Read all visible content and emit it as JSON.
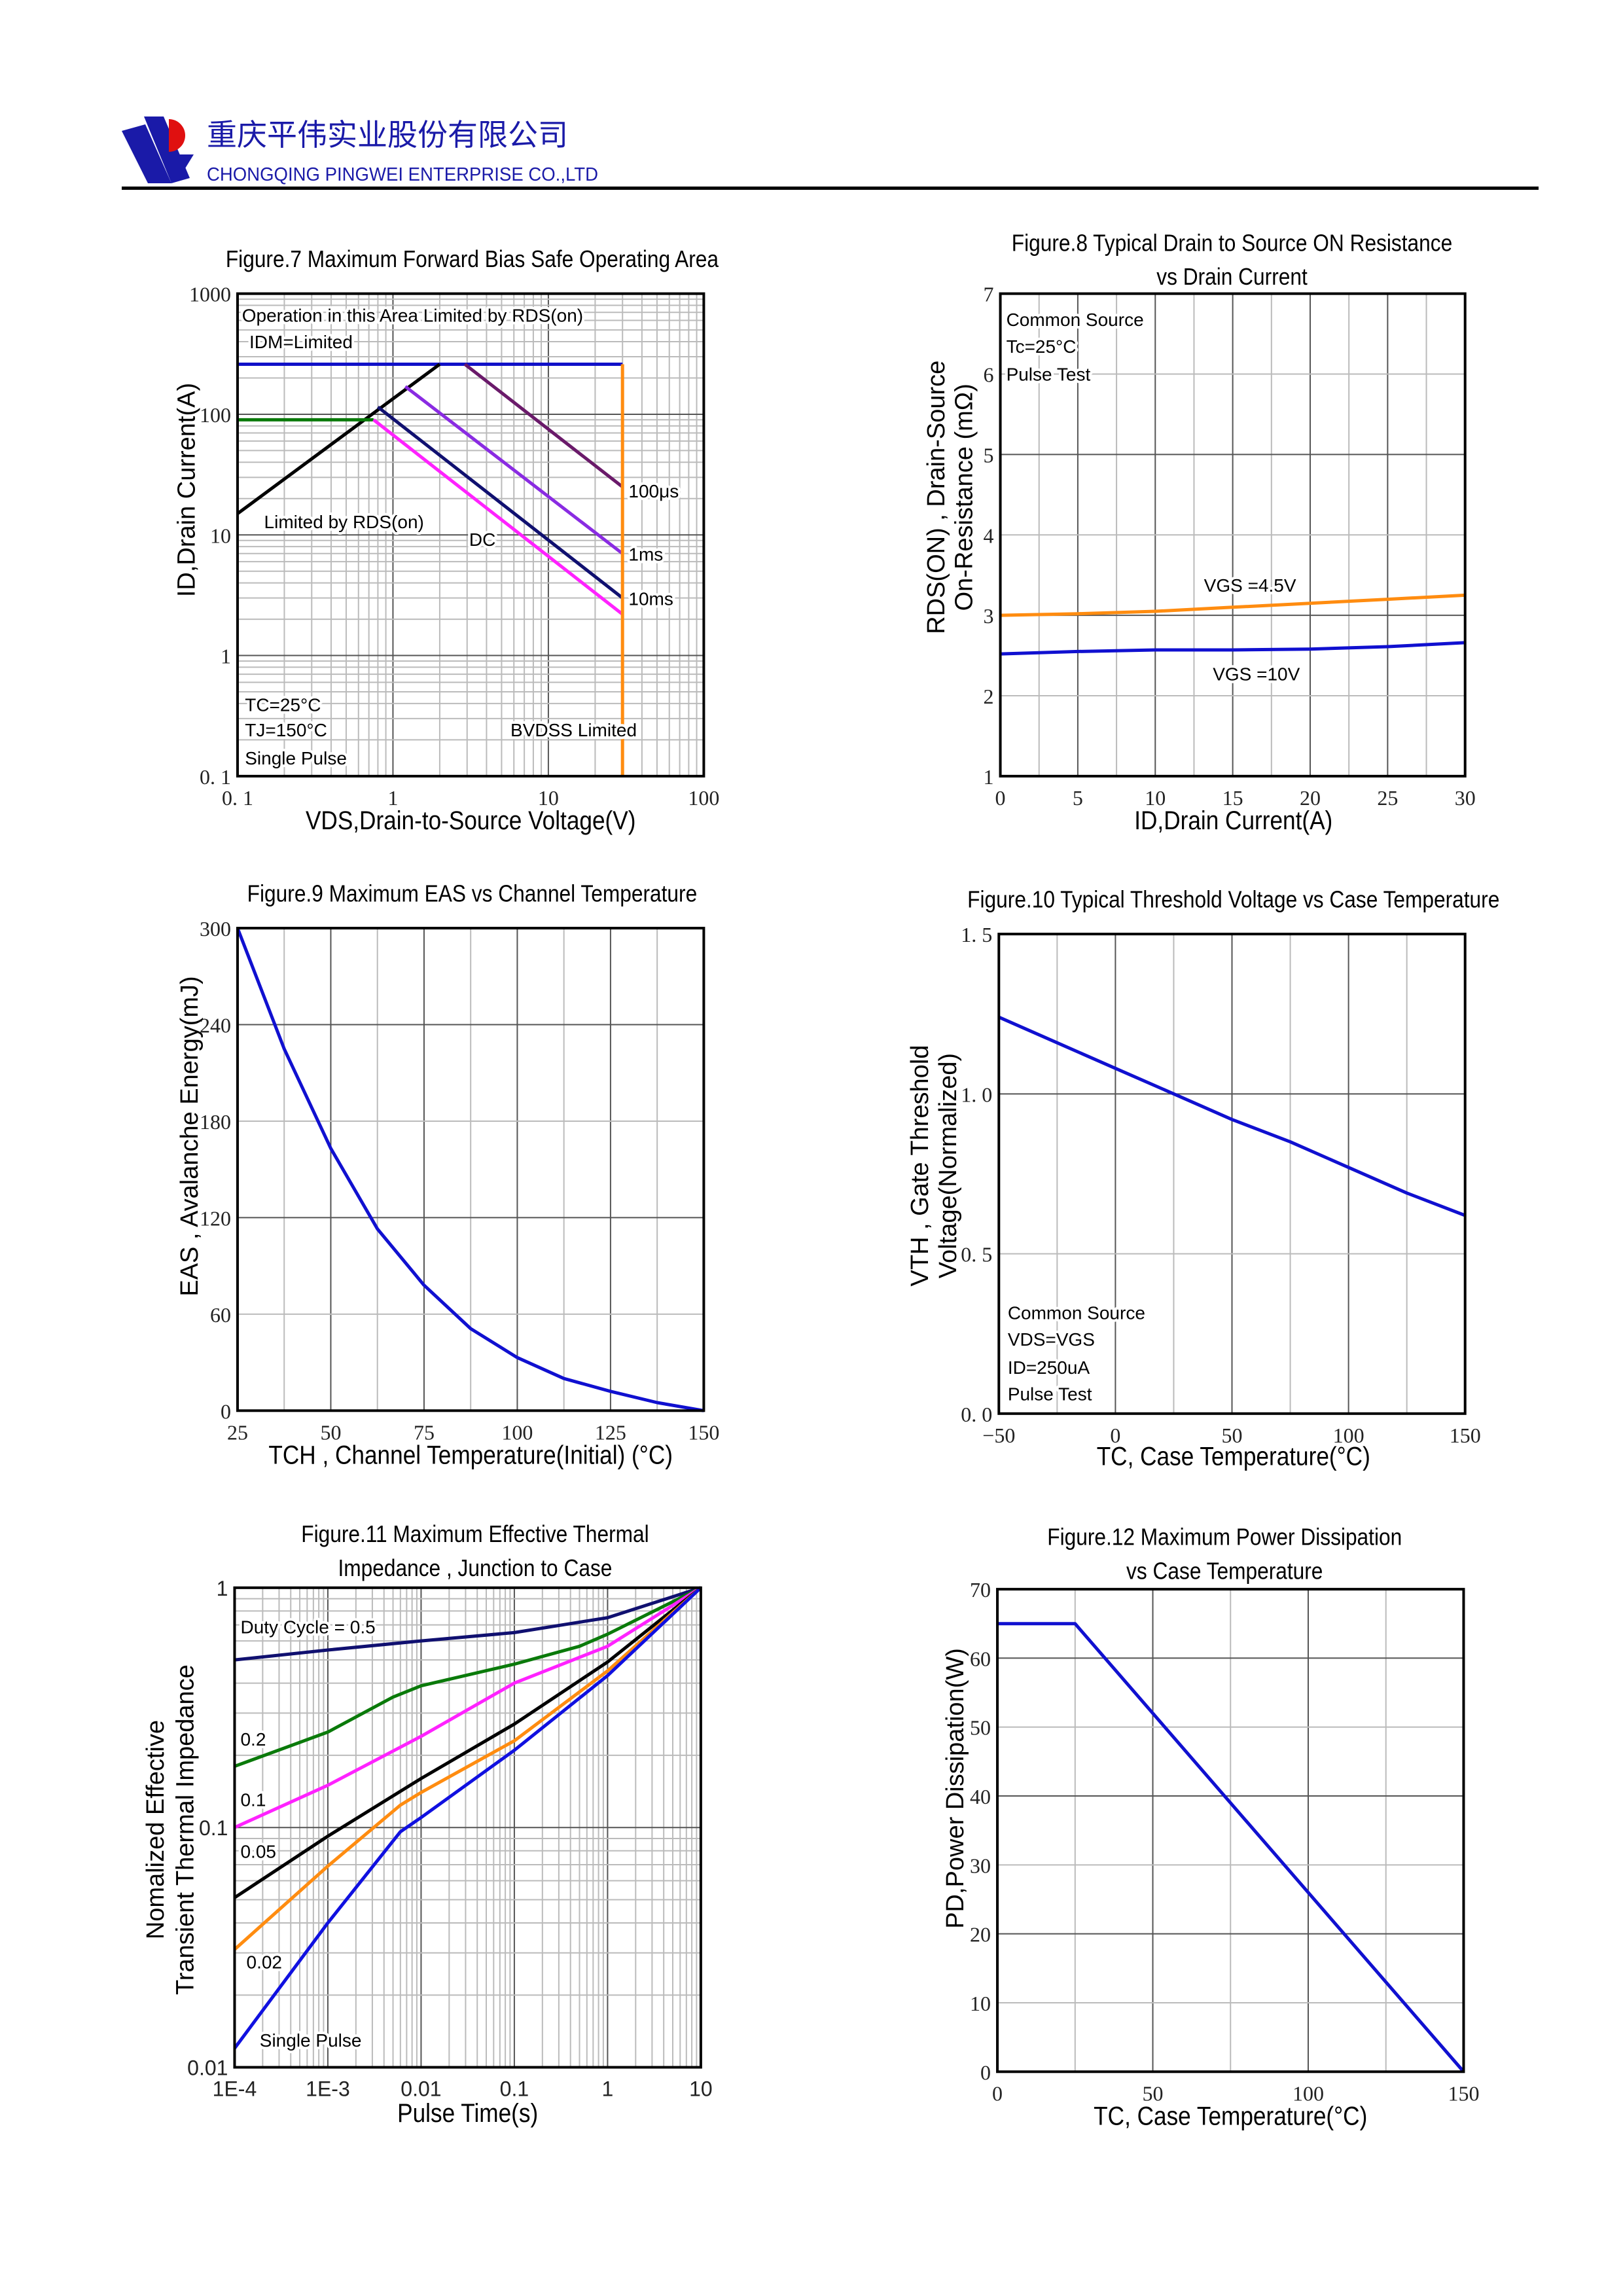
{
  "header": {
    "company_cn": "重庆平伟实业股份有限公司",
    "company_en": "CHONGQING PINGWEI ENTERPRISE CO.,LTD",
    "brand_color": "#1a1aa8",
    "logo_accent": "#e01010"
  },
  "chart_data": [
    {
      "type": "line",
      "title": [
        "Figure.7 Maximum Forward Bias Safe Operating Area"
      ],
      "xlabel": "VDS,Drain-to-Source Voltage(V)",
      "ylabel": [
        "ID,Drain Current(A)"
      ],
      "xscale": "log",
      "yscale": "log",
      "xlim": [
        0.1,
        100
      ],
      "ylim": [
        0.1,
        1000
      ],
      "grid": true,
      "xticks": [
        {
          "v": 0.1,
          "label": "0. 1"
        },
        {
          "v": 1,
          "label": "1"
        },
        {
          "v": 10,
          "label": "10"
        },
        {
          "v": 100,
          "label": "100"
        }
      ],
      "yticks": [
        {
          "v": 0.1,
          "label": "0. 1"
        },
        {
          "v": 1,
          "label": "1"
        },
        {
          "v": 10,
          "label": "10"
        },
        {
          "v": 100,
          "label": "100"
        },
        {
          "v": 1000,
          "label": "1000"
        }
      ],
      "series": [
        {
          "color": "#1010c8",
          "points": [
            [
              0.1,
              260
            ],
            [
              30,
              260
            ]
          ]
        },
        {
          "color": "#000000",
          "points": [
            [
              0.1,
              15
            ],
            [
              2,
              260
            ]
          ]
        },
        {
          "color": "#0a7a0a",
          "points": [
            [
              0.1,
              90
            ],
            [
              0.75,
              90
            ]
          ]
        },
        {
          "color": "#6a1a6a",
          "points": [
            [
              2.9,
              260
            ],
            [
              30,
              25
            ]
          ]
        },
        {
          "color": "#8a2be2",
          "points": [
            [
              1.2,
              170
            ],
            [
              30,
              7
            ]
          ]
        },
        {
          "color": "#101070",
          "points": [
            [
              0.8,
              115
            ],
            [
              30,
              3
            ]
          ]
        },
        {
          "color": "#ff22ff",
          "points": [
            [
              0.75,
              90
            ],
            [
              30,
              2.2
            ]
          ]
        },
        {
          "color": "#ff8c10",
          "points": [
            [
              30,
              0.1
            ],
            [
              30,
              260
            ]
          ]
        }
      ],
      "annotations": [
        "Operation in this Area Limited by RDS(on)",
        "IDM=Limited",
        "Limited by RDS(on)",
        "DC",
        "100μs",
        "1ms",
        "10ms",
        "TC=25°C",
        "TJ=150°C",
        "Single Pulse",
        "BVDSS Limited"
      ]
    },
    {
      "type": "line",
      "title": [
        "Figure.8 Typical Drain to Source ON Resistance",
        "vs Drain Current"
      ],
      "xlabel": "ID,Drain Current(A)",
      "ylabel": [
        "RDS(ON) , Drain-Source",
        "On-Resistance (mΩ)"
      ],
      "xscale": "linear",
      "yscale": "linear",
      "xlim": [
        0,
        30
      ],
      "ylim": [
        1,
        7
      ],
      "grid": true,
      "xticks": [
        {
          "v": 0,
          "label": "0"
        },
        {
          "v": 5,
          "label": "5"
        },
        {
          "v": 10,
          "label": "10"
        },
        {
          "v": 15,
          "label": "15"
        },
        {
          "v": 20,
          "label": "20"
        },
        {
          "v": 25,
          "label": "25"
        },
        {
          "v": 30,
          "label": "30"
        }
      ],
      "yticks": [
        {
          "v": 1,
          "label": "1"
        },
        {
          "v": 2,
          "label": "2"
        },
        {
          "v": 3,
          "label": "3"
        },
        {
          "v": 4,
          "label": "4"
        },
        {
          "v": 5,
          "label": "5"
        },
        {
          "v": 6,
          "label": "6"
        },
        {
          "v": 7,
          "label": "7"
        }
      ],
      "series": [
        {
          "name": "VGS =4.5V",
          "color": "#ff8c10",
          "points": [
            [
              0,
              3.0
            ],
            [
              5,
              3.02
            ],
            [
              10,
              3.05
            ],
            [
              15,
              3.1
            ],
            [
              20,
              3.15
            ],
            [
              25,
              3.2
            ],
            [
              30,
              3.25
            ]
          ]
        },
        {
          "name": "VGS =10V",
          "color": "#1010d0",
          "points": [
            [
              0,
              2.52
            ],
            [
              5,
              2.55
            ],
            [
              10,
              2.57
            ],
            [
              15,
              2.57
            ],
            [
              20,
              2.58
            ],
            [
              25,
              2.61
            ],
            [
              30,
              2.66
            ]
          ]
        }
      ],
      "annotations": [
        "Common Source",
        "Tc=25°C",
        "Pulse Test",
        "VGS =4.5V",
        "VGS =10V"
      ]
    },
    {
      "type": "line",
      "title": [
        "Figure.9 Maximum EAS vs Channel Temperature"
      ],
      "xlabel": "TCH , Channel Temperature(Initial) (°C)",
      "ylabel": [
        "EAS , Avalanche Energy(mJ)"
      ],
      "xscale": "linear",
      "yscale": "linear",
      "xlim": [
        25,
        150
      ],
      "ylim": [
        0,
        300
      ],
      "grid": true,
      "xticks": [
        {
          "v": 25,
          "label": "25"
        },
        {
          "v": 50,
          "label": "50"
        },
        {
          "v": 75,
          "label": "75"
        },
        {
          "v": 100,
          "label": "100"
        },
        {
          "v": 125,
          "label": "125"
        },
        {
          "v": 150,
          "label": "150"
        }
      ],
      "yticks": [
        {
          "v": 0,
          "label": "0"
        },
        {
          "v": 60,
          "label": "60"
        },
        {
          "v": 120,
          "label": "120"
        },
        {
          "v": 180,
          "label": "180"
        },
        {
          "v": 240,
          "label": "240"
        },
        {
          "v": 300,
          "label": "300"
        }
      ],
      "series": [
        {
          "color": "#1010d0",
          "points": [
            [
              25,
              300
            ],
            [
              37.5,
              225
            ],
            [
              50,
              163
            ],
            [
              62.5,
              113
            ],
            [
              75,
              78
            ],
            [
              87.5,
              51
            ],
            [
              100,
              33
            ],
            [
              112.5,
              20
            ],
            [
              125,
              12
            ],
            [
              137.5,
              5
            ],
            [
              150,
              0
            ]
          ]
        }
      ],
      "annotations": []
    },
    {
      "type": "line",
      "title": [
        "Figure.10 Typical Threshold Voltage vs Case Temperature"
      ],
      "xlabel": "TC, Case Temperature(°C)",
      "ylabel": [
        "VTH , Gate Threshold",
        "Voltage(Normalized)"
      ],
      "xscale": "linear",
      "yscale": "linear",
      "xlim": [
        -50,
        150
      ],
      "ylim": [
        0,
        1.5
      ],
      "grid": true,
      "xticks": [
        {
          "v": -50,
          "label": "−50"
        },
        {
          "v": 0,
          "label": "0"
        },
        {
          "v": 50,
          "label": "50"
        },
        {
          "v": 100,
          "label": "100"
        },
        {
          "v": 150,
          "label": "150"
        }
      ],
      "yticks": [
        {
          "v": 0,
          "label": "0. 0"
        },
        {
          "v": 0.5,
          "label": "0. 5"
        },
        {
          "v": 1,
          "label": "1. 0"
        },
        {
          "v": 1.5,
          "label": "1. 5"
        }
      ],
      "series": [
        {
          "color": "#1010d0",
          "points": [
            [
              -50,
              1.24
            ],
            [
              -25,
              1.16
            ],
            [
              0,
              1.08
            ],
            [
              25,
              1.0
            ],
            [
              50,
              0.92
            ],
            [
              75,
              0.85
            ],
            [
              100,
              0.77
            ],
            [
              125,
              0.69
            ],
            [
              150,
              0.62
            ]
          ]
        }
      ],
      "annotations": [
        "Common Source",
        "VDS=VGS",
        "ID=250uA",
        "Pulse Test"
      ]
    },
    {
      "type": "line",
      "title": [
        "Figure.11 Maximum Effective Thermal",
        "Impedance , Junction to Case"
      ],
      "xlabel": "Pulse Time(s)",
      "ylabel": [
        "Nomalized Effective",
        "Transient Thermal Impedance"
      ],
      "xscale": "log",
      "yscale": "log",
      "xlim": [
        0.0001,
        10
      ],
      "ylim": [
        0.01,
        1
      ],
      "grid": true,
      "xticks": [
        {
          "v": 0.0001,
          "label": "1E-4"
        },
        {
          "v": 0.001,
          "label": "1E-3"
        },
        {
          "v": 0.01,
          "label": "0.01"
        },
        {
          "v": 0.1,
          "label": "0.1"
        },
        {
          "v": 1,
          "label": "1"
        },
        {
          "v": 10,
          "label": "10"
        }
      ],
      "yticks": [
        {
          "v": 0.01,
          "label": "0.01"
        },
        {
          "v": 0.1,
          "label": "0.1"
        },
        {
          "v": 1,
          "label": "1"
        }
      ],
      "series": [
        {
          "name": "Duty Cycle = 0.5",
          "color": "#101070",
          "points": [
            [
              0.0001,
              0.5
            ],
            [
              0.001,
              0.55
            ],
            [
              0.01,
              0.6
            ],
            [
              0.1,
              0.65
            ],
            [
              1,
              0.75
            ],
            [
              10,
              1
            ]
          ]
        },
        {
          "name": "0.2",
          "color": "#0a7a0a",
          "points": [
            [
              0.0001,
              0.18
            ],
            [
              0.001,
              0.25
            ],
            [
              0.005,
              0.35
            ],
            [
              0.01,
              0.39
            ],
            [
              0.1,
              0.48
            ],
            [
              0.5,
              0.57
            ],
            [
              1,
              0.64
            ],
            [
              10,
              1
            ]
          ]
        },
        {
          "name": "0.1",
          "color": "#ff22ff",
          "points": [
            [
              0.0001,
              0.1
            ],
            [
              0.001,
              0.15
            ],
            [
              0.01,
              0.24
            ],
            [
              0.1,
              0.4
            ],
            [
              1,
              0.57
            ],
            [
              10,
              1
            ]
          ]
        },
        {
          "name": "0.05",
          "color": "#000000",
          "points": [
            [
              0.0001,
              0.051
            ],
            [
              0.001,
              0.092
            ],
            [
              0.01,
              0.16
            ],
            [
              0.1,
              0.27
            ],
            [
              1,
              0.49
            ],
            [
              10,
              1
            ]
          ]
        },
        {
          "name": "0.02",
          "color": "#ff8c10",
          "points": [
            [
              0.0001,
              0.031
            ],
            [
              0.001,
              0.069
            ],
            [
              0.006,
              0.124
            ],
            [
              0.01,
              0.14
            ],
            [
              0.1,
              0.23
            ],
            [
              1,
              0.45
            ],
            [
              10,
              1
            ]
          ]
        },
        {
          "name": "Single Pulse",
          "color": "#1010e0",
          "points": [
            [
              0.0001,
              0.012
            ],
            [
              0.001,
              0.04
            ],
            [
              0.006,
              0.096
            ],
            [
              0.01,
              0.11
            ],
            [
              0.1,
              0.21
            ],
            [
              1,
              0.43
            ],
            [
              10,
              1
            ]
          ]
        }
      ],
      "annotations": [
        "Duty Cycle = 0.5",
        "0.2",
        "0.1",
        "0.05",
        "0.02",
        "Single Pulse"
      ]
    },
    {
      "type": "line",
      "title": [
        "Figure.12 Maximum Power Dissipation",
        "vs Case Temperature"
      ],
      "xlabel": "TC, Case Temperature(°C)",
      "ylabel": [
        "PD,Power Dissipation(W)"
      ],
      "xscale": "linear",
      "yscale": "linear",
      "xlim": [
        0,
        150
      ],
      "ylim": [
        0,
        70
      ],
      "grid": true,
      "xticks": [
        {
          "v": 0,
          "label": "0"
        },
        {
          "v": 50,
          "label": "50"
        },
        {
          "v": 100,
          "label": "100"
        },
        {
          "v": 150,
          "label": "150"
        }
      ],
      "yticks": [
        {
          "v": 0,
          "label": "0"
        },
        {
          "v": 10,
          "label": "10"
        },
        {
          "v": 20,
          "label": "20"
        },
        {
          "v": 30,
          "label": "30"
        },
        {
          "v": 40,
          "label": "40"
        },
        {
          "v": 50,
          "label": "50"
        },
        {
          "v": 60,
          "label": "60"
        },
        {
          "v": 70,
          "label": "70"
        }
      ],
      "series": [
        {
          "color": "#1010d0",
          "points": [
            [
              0,
              65
            ],
            [
              25,
              65
            ],
            [
              150,
              0
            ]
          ]
        }
      ],
      "annotations": []
    }
  ]
}
